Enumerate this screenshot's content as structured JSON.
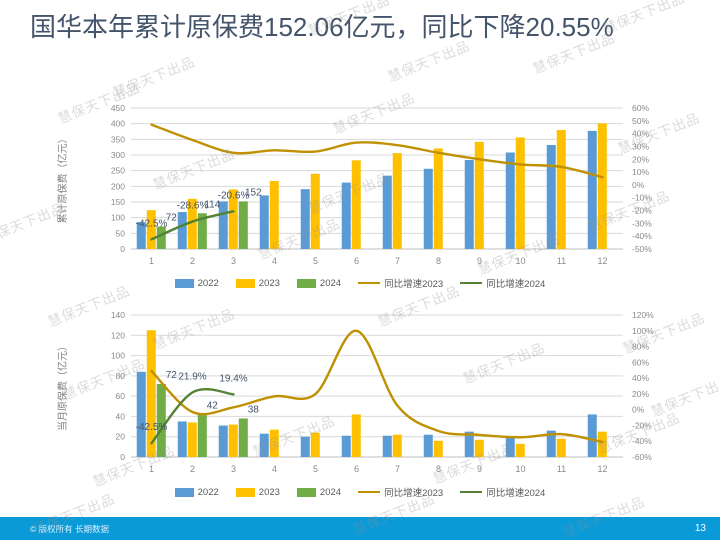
{
  "title": "国华本年累计原保费152.06亿元，同比下降20.55%",
  "watermark": {
    "text": "慧保天下出品"
  },
  "footer": {
    "copyright": "© 版权所有 长期数据",
    "page_number": "13"
  },
  "colors": {
    "title_text": "#44546A",
    "footer_bar": "#0A9AD8",
    "bar_colors": [
      "#5B9BD5",
      "#FFC000",
      "#70AD47"
    ],
    "line_colors": [
      "#BF9000",
      "#548235"
    ],
    "gridline": "#D9D9D9",
    "axis_line": "#BFBFBF",
    "axis_text": "#8A8A8A",
    "data_label": "#44546A",
    "legend_text": "#595959"
  },
  "chart_data": [
    {
      "id": "cumulative-premium",
      "type": "bar",
      "title": "",
      "ylabel": "累计原保费（亿元）",
      "categories": [
        1,
        2,
        3,
        4,
        5,
        6,
        7,
        8,
        9,
        10,
        11,
        12
      ],
      "left_axis": {
        "min": 0,
        "max": 450,
        "step": 50
      },
      "right_axis": {
        "min": -50,
        "max": 60,
        "step": 10,
        "unit": "%"
      },
      "grid": "horizontal",
      "legend_position": "bottom",
      "series": [
        {
          "name": "2022",
          "type": "bar",
          "axis": "left",
          "values": [
            86,
            118,
            152,
            171,
            191,
            212,
            234,
            256,
            284,
            308,
            332,
            377
          ]
        },
        {
          "name": "2023",
          "type": "bar",
          "axis": "left",
          "values": [
            124,
            160,
            190,
            217,
            240,
            283,
            306,
            321,
            342,
            356,
            380,
            401
          ]
        },
        {
          "name": "2024",
          "type": "bar",
          "axis": "left",
          "values": [
            72,
            114,
            152
          ],
          "labels": [
            "72",
            "114",
            "152"
          ]
        },
        {
          "name": "同比增速2023",
          "type": "line",
          "axis": "right",
          "values": [
            47,
            35,
            25,
            27,
            26,
            33,
            31,
            25,
            20,
            16,
            14,
            6
          ]
        },
        {
          "name": "同比增速2024",
          "type": "line",
          "axis": "right",
          "values": [
            -42.5,
            -28.6,
            -20.6
          ],
          "labels": [
            "-42.5%",
            "-28.6%",
            "-20.6%"
          ]
        }
      ]
    },
    {
      "id": "monthly-premium",
      "type": "bar",
      "title": "",
      "ylabel": "当月原保费（亿元）",
      "categories": [
        1,
        2,
        3,
        4,
        5,
        6,
        7,
        8,
        9,
        10,
        11,
        12
      ],
      "left_axis": {
        "min": 0,
        "max": 140,
        "step": 20
      },
      "right_axis": {
        "min": -60,
        "max": 120,
        "step": 20,
        "unit": "%"
      },
      "grid": "horizontal",
      "legend_position": "bottom",
      "series": [
        {
          "name": "2022",
          "type": "bar",
          "axis": "left",
          "values": [
            84,
            35,
            31,
            23,
            20,
            21,
            21,
            22,
            25,
            20,
            26,
            42
          ]
        },
        {
          "name": "2023",
          "type": "bar",
          "axis": "left",
          "values": [
            125,
            34,
            32,
            27,
            24,
            42,
            22,
            16,
            17,
            13,
            18,
            25
          ]
        },
        {
          "name": "2024",
          "type": "bar",
          "axis": "left",
          "values": [
            72,
            42,
            38
          ],
          "labels": [
            "72",
            "42",
            "38"
          ]
        },
        {
          "name": "同比增速2023",
          "type": "line",
          "axis": "right",
          "values": [
            49,
            -3,
            3,
            17,
            20,
            100,
            5,
            -27,
            -32,
            -35,
            -31,
            -41
          ]
        },
        {
          "name": "同比增速2024",
          "type": "line",
          "axis": "right",
          "values": [
            -42.5,
            21.9,
            19.4
          ],
          "labels": [
            "-42.5%",
            "21.9%",
            "19.4%"
          ]
        }
      ]
    }
  ]
}
